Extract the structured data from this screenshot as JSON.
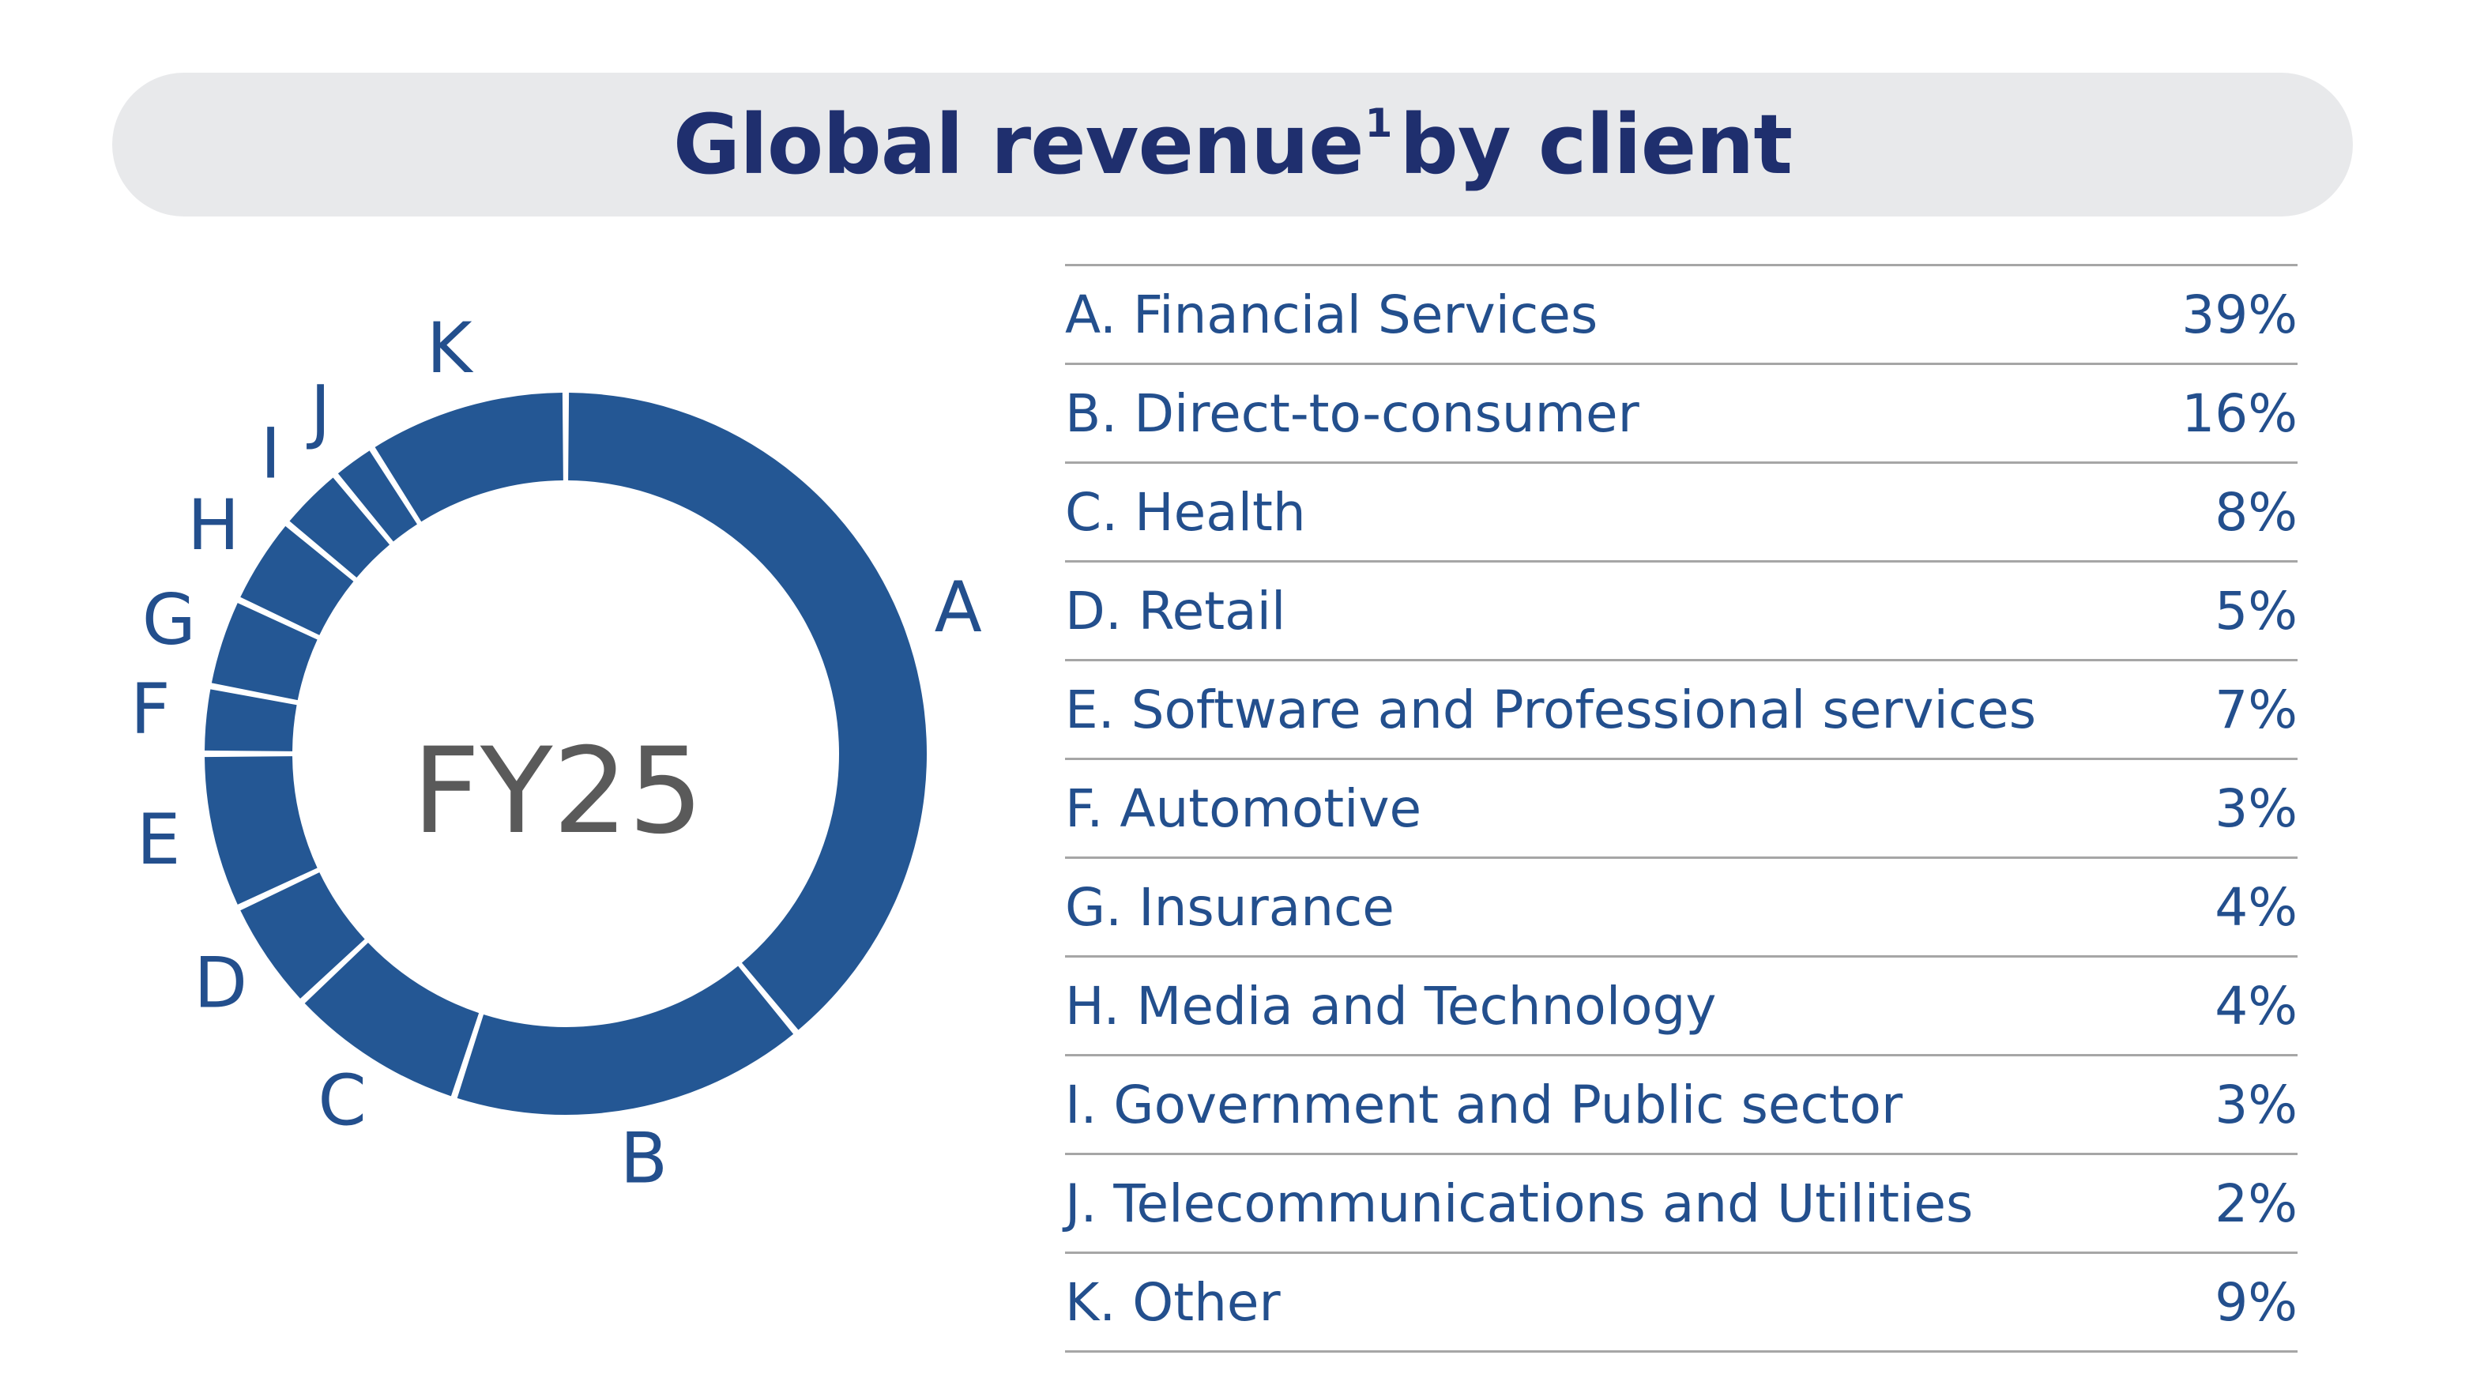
{
  "title": {
    "main": "Global revenue",
    "footnote": "1",
    "suffix": "by client"
  },
  "center_label": "FY25",
  "colors": {
    "title": "#1f2f6e",
    "slice": "#245794",
    "label": "#234f8d",
    "center": "#5a5a5a",
    "title_bg": "#e8e9eb"
  },
  "chart_data": {
    "type": "pie",
    "title": "Global revenue by client",
    "categories": [
      "A",
      "B",
      "C",
      "D",
      "E",
      "F",
      "G",
      "H",
      "I",
      "J",
      "K"
    ],
    "values": [
      39,
      16,
      8,
      5,
      7,
      3,
      4,
      4,
      3,
      2,
      9
    ],
    "legend": [
      {
        "label": "A. Financial Services",
        "value": "39%"
      },
      {
        "label": "B. Direct-to-consumer",
        "value": "16%"
      },
      {
        "label": "C. Health",
        "value": "8%"
      },
      {
        "label": "D. Retail",
        "value": "5%"
      },
      {
        "label": "E. Software and Professional services",
        "value": "7%"
      },
      {
        "label": "F. Automotive",
        "value": "3%"
      },
      {
        "label": "G. Insurance",
        "value": "4%"
      },
      {
        "label": "H. Media and Technology",
        "value": "4%"
      },
      {
        "label": "I. Government and Public sector",
        "value": "3%"
      },
      {
        "label": "J. Telecommunications and Utilities",
        "value": "2%"
      },
      {
        "label": "K. Other",
        "value": "9%"
      }
    ],
    "legend_placement": "right",
    "donut": true
  }
}
